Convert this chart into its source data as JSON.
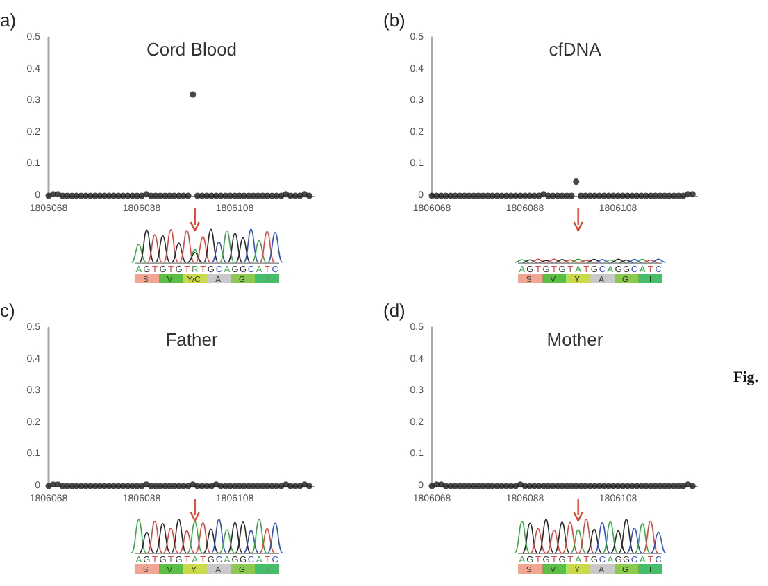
{
  "chart_data": [
    {
      "type": "scatter",
      "title": "Cord Blood",
      "x": [
        1806068,
        1806069,
        1806070,
        1806071,
        1806072,
        1806073,
        1806074,
        1806075,
        1806076,
        1806077,
        1806078,
        1806079,
        1806080,
        1806081,
        1806082,
        1806083,
        1806084,
        1806085,
        1806086,
        1806087,
        1806088,
        1806089,
        1806090,
        1806091,
        1806092,
        1806093,
        1806094,
        1806095,
        1806096,
        1806097,
        1806098,
        1806099,
        1806100,
        1806101,
        1806102,
        1806103,
        1806104,
        1806105,
        1806106,
        1806107,
        1806108,
        1806109,
        1806110,
        1806111,
        1806112,
        1806113,
        1806114,
        1806115,
        1806116,
        1806117,
        1806118,
        1806119,
        1806120,
        1806121,
        1806122,
        1806123,
        1806124
      ],
      "values": [
        0,
        0.005,
        0.005,
        0,
        0,
        0,
        0,
        0,
        0,
        0,
        0,
        0,
        0,
        0,
        0,
        0,
        0,
        0,
        0,
        0,
        0,
        0.005,
        0,
        0,
        0,
        0,
        0,
        0,
        0,
        0,
        0,
        0.32,
        0,
        0,
        0,
        0,
        0,
        0,
        0,
        0,
        0,
        0,
        0,
        0,
        0,
        0,
        0,
        0,
        0,
        0,
        0,
        0.005,
        0,
        0,
        0,
        0.005,
        0
      ],
      "color": "#1a1a1a",
      "marker": "circle",
      "xlim": [
        1806068,
        1806125
      ],
      "xticks": [
        1806068,
        1806088,
        1806108
      ],
      "ylim": [
        0,
        0.5
      ],
      "yticks": [
        0,
        0.1,
        0.2,
        0.3,
        0.4,
        0.5
      ],
      "annotations": [
        "a)",
        "AGTGTGTRTGCAGGCATC",
        "S V Y/C A G I"
      ]
    },
    {
      "type": "scatter",
      "title": "cfDNA",
      "x": [
        1806068,
        1806069,
        1806070,
        1806071,
        1806072,
        1806073,
        1806074,
        1806075,
        1806076,
        1806077,
        1806078,
        1806079,
        1806080,
        1806081,
        1806082,
        1806083,
        1806084,
        1806085,
        1806086,
        1806087,
        1806088,
        1806089,
        1806090,
        1806091,
        1806092,
        1806093,
        1806094,
        1806095,
        1806096,
        1806097,
        1806098,
        1806099,
        1806100,
        1806101,
        1806102,
        1806103,
        1806104,
        1806105,
        1806106,
        1806107,
        1806108,
        1806109,
        1806110,
        1806111,
        1806112,
        1806113,
        1806114,
        1806115,
        1806116,
        1806117,
        1806118,
        1806119,
        1806120,
        1806121,
        1806122,
        1806123,
        1806124
      ],
      "values": [
        0,
        0,
        0,
        0,
        0,
        0,
        0,
        0,
        0,
        0,
        0,
        0,
        0,
        0,
        0,
        0,
        0,
        0,
        0,
        0,
        0,
        0,
        0,
        0,
        0.005,
        0,
        0,
        0,
        0,
        0,
        0,
        0.045,
        0,
        0,
        0,
        0,
        0,
        0,
        0,
        0,
        0,
        0,
        0,
        0,
        0,
        0,
        0,
        0,
        0,
        0,
        0,
        0,
        0,
        0,
        0,
        0.005,
        0.005
      ],
      "color": "#1a1a1a",
      "marker": "circle",
      "xlim": [
        1806068,
        1806125
      ],
      "xticks": [
        1806068,
        1806088,
        1806108
      ],
      "ylim": [
        0,
        0.5
      ],
      "yticks": [
        0,
        0.1,
        0.2,
        0.3,
        0.4,
        0.5
      ],
      "annotations": [
        "(b)",
        "AGTGTGTATGCAGGCATC",
        "S V Y A G I"
      ]
    },
    {
      "type": "scatter",
      "title": "Father",
      "x": [
        1806068,
        1806069,
        1806070,
        1806071,
        1806072,
        1806073,
        1806074,
        1806075,
        1806076,
        1806077,
        1806078,
        1806079,
        1806080,
        1806081,
        1806082,
        1806083,
        1806084,
        1806085,
        1806086,
        1806087,
        1806088,
        1806089,
        1806090,
        1806091,
        1806092,
        1806093,
        1806094,
        1806095,
        1806096,
        1806097,
        1806098,
        1806099,
        1806100,
        1806101,
        1806102,
        1806103,
        1806104,
        1806105,
        1806106,
        1806107,
        1806108,
        1806109,
        1806110,
        1806111,
        1806112,
        1806113,
        1806114,
        1806115,
        1806116,
        1806117,
        1806118,
        1806119,
        1806120,
        1806121,
        1806122,
        1806123,
        1806124
      ],
      "values": [
        0,
        0.005,
        0.005,
        0,
        0,
        0,
        0,
        0,
        0,
        0,
        0,
        0,
        0,
        0,
        0,
        0,
        0,
        0,
        0,
        0,
        0,
        0.005,
        0,
        0,
        0,
        0,
        0,
        0,
        0,
        0,
        0,
        0.005,
        0,
        0,
        0,
        0,
        0.005,
        0,
        0,
        0,
        0,
        0,
        0,
        0,
        0,
        0,
        0,
        0,
        0,
        0,
        0,
        0.005,
        0,
        0,
        0,
        0.005,
        0
      ],
      "color": "#1a1a1a",
      "marker": "circle",
      "xlim": [
        1806068,
        1806125
      ],
      "xticks": [
        1806068,
        1806088,
        1806108
      ],
      "ylim": [
        0,
        0.5
      ],
      "yticks": [
        0,
        0.1,
        0.2,
        0.3,
        0.4,
        0.5
      ],
      "annotations": [
        "c)",
        "AGTGTGTATGCAGGCATC",
        "S V Y A G I"
      ]
    },
    {
      "type": "scatter",
      "title": "Mother",
      "x": [
        1806068,
        1806069,
        1806070,
        1806071,
        1806072,
        1806073,
        1806074,
        1806075,
        1806076,
        1806077,
        1806078,
        1806079,
        1806080,
        1806081,
        1806082,
        1806083,
        1806084,
        1806085,
        1806086,
        1806087,
        1806088,
        1806089,
        1806090,
        1806091,
        1806092,
        1806093,
        1806094,
        1806095,
        1806096,
        1806097,
        1806098,
        1806099,
        1806100,
        1806101,
        1806102,
        1806103,
        1806104,
        1806105,
        1806106,
        1806107,
        1806108,
        1806109,
        1806110,
        1806111,
        1806112,
        1806113,
        1806114,
        1806115,
        1806116,
        1806117,
        1806118,
        1806119,
        1806120,
        1806121,
        1806122,
        1806123,
        1806124
      ],
      "values": [
        0,
        0.005,
        0.005,
        0,
        0,
        0,
        0,
        0,
        0,
        0,
        0,
        0,
        0,
        0,
        0,
        0,
        0,
        0,
        0,
        0.005,
        0,
        0,
        0,
        0,
        0,
        0,
        0,
        0,
        0,
        0,
        0,
        0,
        0,
        0,
        0,
        0,
        0,
        0,
        0,
        0,
        0,
        0,
        0,
        0,
        0,
        0,
        0,
        0,
        0,
        0,
        0,
        0,
        0,
        0,
        0,
        0.005,
        0
      ],
      "color": "#1a1a1a",
      "marker": "circle",
      "xlim": [
        1806068,
        1806125
      ],
      "xticks": [
        1806068,
        1806088,
        1806108
      ],
      "ylim": [
        0,
        0.5
      ],
      "yticks": [
        0,
        0.1,
        0.2,
        0.3,
        0.4,
        0.5
      ],
      "annotations": [
        "(d)",
        "AGTGTGTATGCAGGCATC",
        "S V Y A G I",
        "Fig."
      ]
    }
  ]
}
